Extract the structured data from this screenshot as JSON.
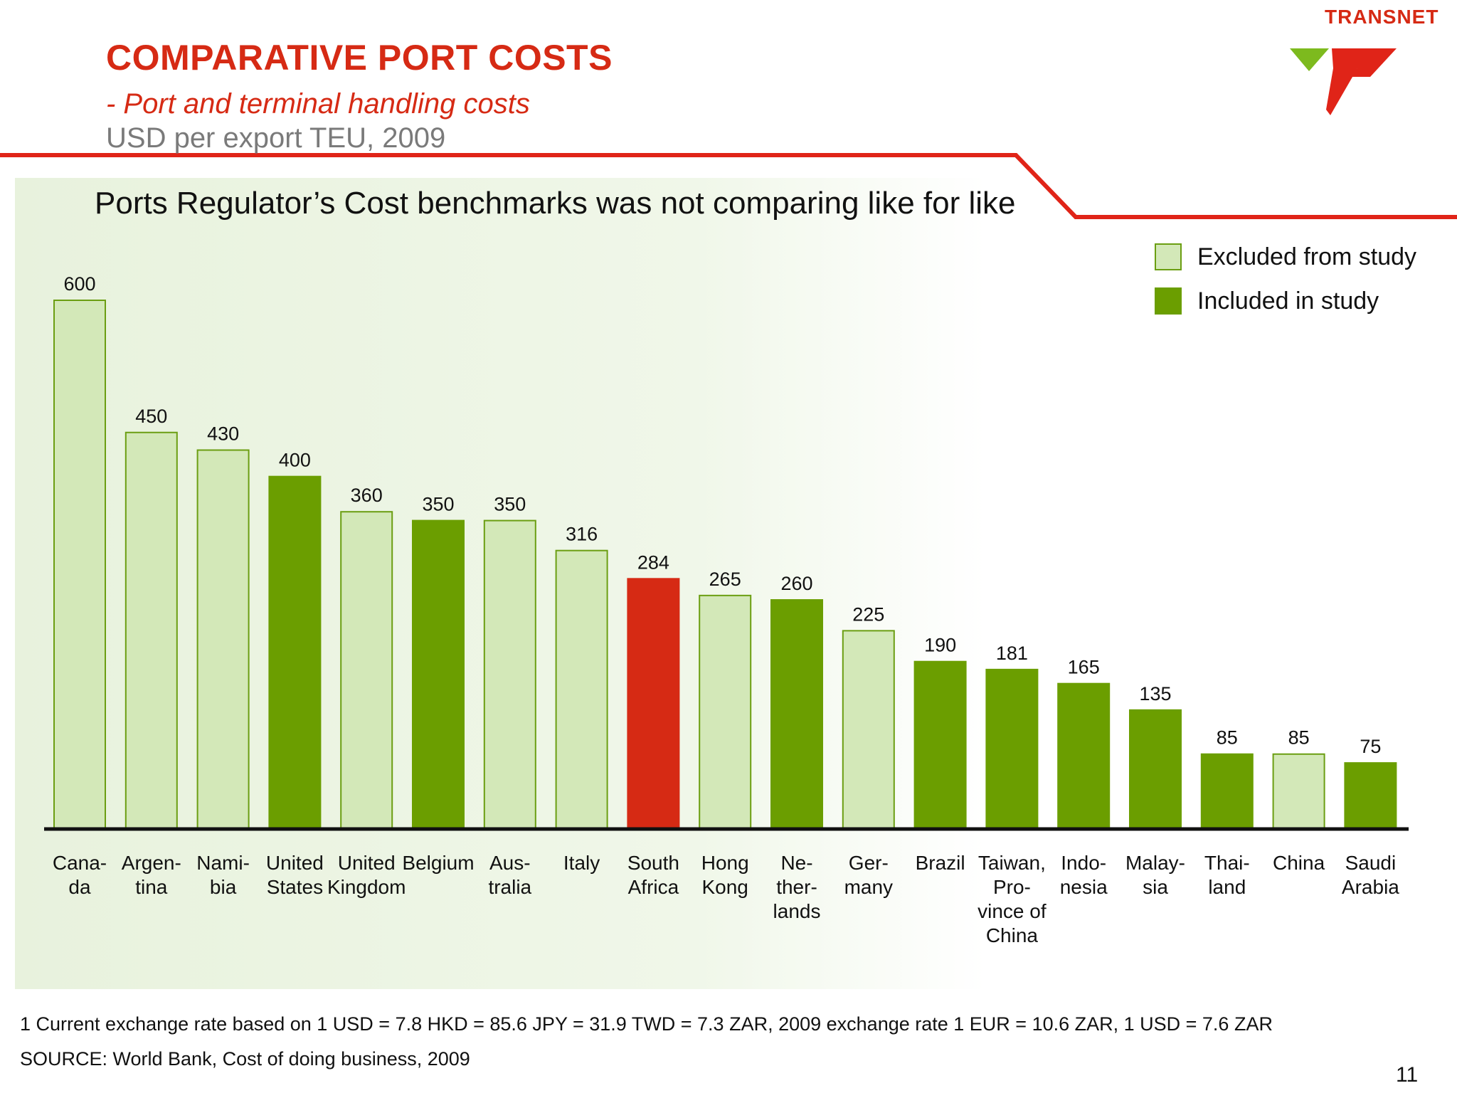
{
  "header": {
    "title": "COMPARATIVE PORT COSTS",
    "subtitle": "- Port and terminal handling costs",
    "units": "USD per export TEU, 2009",
    "brand": "TRANSNET"
  },
  "headline": "Ports Regulator’s Cost benchmarks was not comparing like for like",
  "legend": {
    "excluded_label": "Excluded from study",
    "included_label": "Included in study"
  },
  "colors": {
    "excluded": "#d3e8b8",
    "excluded_border": "#6b9e12",
    "included": "#6b9e00",
    "highlight": "#d62a14",
    "accent": "#e02418"
  },
  "chart_data": {
    "type": "bar",
    "title": "COMPARATIVE PORT COSTS",
    "ylabel": "USD per export TEU, 2009",
    "ylim": [
      0,
      600
    ],
    "grid": false,
    "legend_position": "top-right",
    "categories": [
      "Canada",
      "Argentina",
      "Namibia",
      "United States",
      "United Kingdom",
      "Belgium",
      "Australia",
      "Italy",
      "South Africa",
      "Hong Kong",
      "Netherlands",
      "Germany",
      "Brazil",
      "Taiwan, Province of China",
      "Indonesia",
      "Malaysia",
      "Thailand",
      "China",
      "Saudi Arabia"
    ],
    "tick_labels": [
      [
        "Cana-",
        "da"
      ],
      [
        "Argen-",
        "tina"
      ],
      [
        "Nami-",
        "bia"
      ],
      [
        "United",
        "States"
      ],
      [
        "United",
        "Kingdom"
      ],
      [
        "Belgium"
      ],
      [
        "Aus-",
        "tralia"
      ],
      [
        "Italy"
      ],
      [
        "South",
        "Africa"
      ],
      [
        "Hong",
        "Kong"
      ],
      [
        "Ne-",
        "ther-",
        "lands"
      ],
      [
        "Ger-",
        "many"
      ],
      [
        "Brazil"
      ],
      [
        "Taiwan,",
        "Pro-",
        "vince of",
        "China"
      ],
      [
        "Indo-",
        "nesia"
      ],
      [
        "Malay-",
        "sia"
      ],
      [
        "Thai-",
        "land"
      ],
      [
        "China"
      ],
      [
        "Saudi",
        "Arabia"
      ]
    ],
    "values": [
      600,
      450,
      430,
      400,
      360,
      350,
      350,
      316,
      284,
      265,
      260,
      225,
      190,
      181,
      165,
      135,
      85,
      85,
      75
    ],
    "status": [
      "excluded",
      "excluded",
      "excluded",
      "included",
      "excluded",
      "included",
      "excluded",
      "excluded",
      "highlight",
      "excluded",
      "included",
      "excluded",
      "included",
      "included",
      "included",
      "included",
      "included",
      "excluded",
      "included"
    ],
    "series": [
      {
        "name": "Excluded from study"
      },
      {
        "name": "Included in study"
      }
    ]
  },
  "footer": {
    "footnote": "1 Current exchange rate based on 1 USD = 7.8 HKD = 85.6 JPY = 31.9 TWD = 7.3 ZAR, 2009 exchange rate 1 EUR = 10.6 ZAR, 1 USD = 7.6 ZAR",
    "source": "SOURCE: World Bank, Cost of doing business, 2009",
    "page_number": "11"
  }
}
